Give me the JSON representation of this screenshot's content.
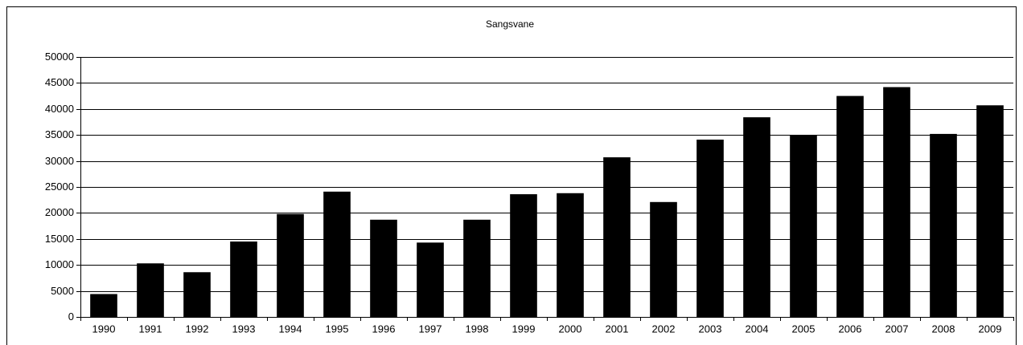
{
  "chart_data": {
    "type": "bar",
    "title": "Sangsvane",
    "categories": [
      "1990",
      "1991",
      "1992",
      "1993",
      "1994",
      "1995",
      "1996",
      "1997",
      "1998",
      "1999",
      "2000",
      "2001",
      "2002",
      "2003",
      "2004",
      "2005",
      "2006",
      "2007",
      "2008",
      "2009"
    ],
    "values": [
      4400,
      10300,
      8600,
      14500,
      19800,
      24100,
      18700,
      14300,
      18700,
      23600,
      23800,
      30700,
      22100,
      34100,
      38400,
      35000,
      42500,
      44200,
      35200,
      40700
    ],
    "color": "#000000",
    "ylim": [
      0,
      50000
    ],
    "yticks": [
      0,
      5000,
      10000,
      15000,
      20000,
      25000,
      30000,
      35000,
      40000,
      45000,
      50000
    ],
    "grid": true
  }
}
